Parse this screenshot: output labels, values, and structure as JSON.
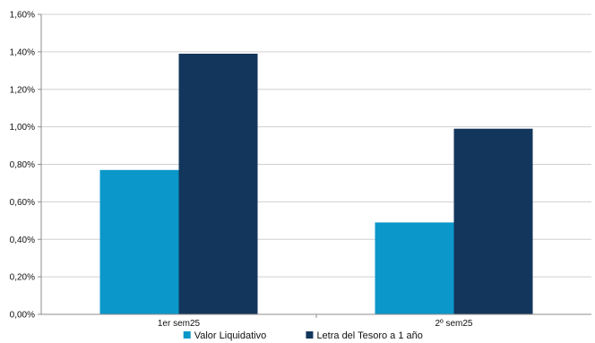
{
  "chart_data": {
    "type": "bar",
    "title": "",
    "xlabel": "",
    "ylabel": "",
    "categories": [
      "1er sem25",
      "2º sem25"
    ],
    "series": [
      {
        "name": "Valor Liquidativo",
        "values": [
          0.77,
          0.49
        ],
        "color": "#0B97C9"
      },
      {
        "name": "Letra del Tesoro a 1 año",
        "values": [
          1.39,
          0.99
        ],
        "color": "#13365C"
      }
    ],
    "ylim": [
      0,
      1.6
    ],
    "y_ticks": [
      "0,00%",
      "0,20%",
      "0,40%",
      "0,60%",
      "0,80%",
      "1,00%",
      "1,20%",
      "1,40%",
      "1,60%"
    ],
    "y_tick_values": [
      0,
      0.2,
      0.4,
      0.6,
      0.8,
      1.0,
      1.2,
      1.4,
      1.6
    ],
    "grid": true,
    "legend_position": "bottom-center"
  },
  "colors": {
    "grid": "#d0d0d0",
    "axis": "#8c8c8c",
    "text": "#111111"
  }
}
